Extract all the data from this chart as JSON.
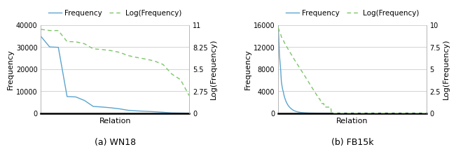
{
  "wn18": {
    "freq_values": [
      34859,
      29875,
      30058,
      7555,
      7374,
      5765,
      3068,
      2812,
      2463,
      1991,
      1323,
      1045,
      855,
      677,
      438,
      133,
      66,
      9
    ],
    "ylim_freq": [
      0,
      40000
    ],
    "yticks_freq": [
      0,
      10000,
      20000,
      30000,
      40000
    ],
    "ylim_log": [
      0,
      11
    ],
    "yticks_log": [
      0,
      2.75,
      5.5,
      8.25,
      11
    ],
    "xlabel": "Relation",
    "ylabel_left": "Frequency",
    "ylabel_right": "Log(Frequency)",
    "title": "(a) WN18"
  },
  "fb15k": {
    "freq_values": [
      15981,
      13705,
      10579,
      9185,
      7768,
      5765,
      4950,
      4330,
      3890,
      3310,
      2870,
      2540,
      2200,
      1950,
      1720,
      1510,
      1350,
      1200,
      1070,
      950,
      850,
      750,
      660,
      580,
      510,
      450,
      400,
      360,
      320,
      285,
      255,
      228,
      203,
      181,
      162,
      144,
      128,
      115,
      102,
      91,
      81,
      72,
      64,
      57,
      51,
      45,
      40,
      36,
      32,
      28,
      25,
      22,
      20,
      18,
      16,
      14,
      12,
      11,
      10,
      9,
      8,
      7,
      6,
      6,
      5,
      5,
      4,
      4,
      3,
      3,
      3,
      3,
      2,
      2,
      2,
      2,
      2,
      2,
      2,
      2,
      2,
      2,
      2,
      1,
      1,
      1,
      1,
      1,
      1,
      1,
      1,
      1,
      1,
      1,
      1,
      1,
      1,
      1,
      1,
      1,
      1,
      1,
      1,
      1,
      1,
      1,
      1,
      1,
      1,
      1,
      1,
      1,
      1,
      1,
      1,
      1,
      1,
      1,
      1,
      1,
      1,
      1,
      1,
      1,
      1,
      1,
      1,
      1,
      1,
      1,
      1,
      1,
      1,
      1,
      1,
      1,
      1,
      1,
      1,
      1,
      1,
      1,
      1,
      1,
      1,
      1,
      1,
      1,
      1,
      1,
      1,
      1,
      1,
      1,
      1,
      1,
      1,
      1,
      1,
      1,
      1,
      1,
      1,
      1,
      1,
      1,
      1,
      1,
      1,
      1,
      1,
      1,
      1,
      1,
      1,
      1,
      1,
      1,
      1,
      1,
      1,
      1,
      1,
      1,
      1,
      1,
      1,
      1,
      1,
      1,
      1,
      1,
      1,
      1,
      1,
      1,
      1,
      1,
      1,
      1,
      1,
      1,
      1,
      1,
      1,
      1,
      1,
      1,
      1,
      1,
      1,
      1,
      1,
      1,
      1,
      1,
      1,
      1,
      1,
      1,
      1,
      1,
      1,
      1,
      1,
      1,
      1,
      1,
      1,
      1,
      1,
      1
    ],
    "ylim_freq": [
      0,
      16000
    ],
    "yticks_freq": [
      0,
      4000,
      8000,
      12000,
      16000
    ],
    "ylim_log": [
      0,
      10
    ],
    "yticks_log": [
      0,
      2.5,
      5.0,
      7.5,
      10
    ],
    "xlabel": "Relation",
    "ylabel_left": "Frequency",
    "ylabel_right": "Log(Frequency)",
    "title": "(b) FB15k"
  },
  "line_color_freq": "#5BA4CF",
  "line_color_log": "#7DC46A",
  "bg_color": "#ffffff",
  "grid_color": "#cccccc",
  "label_freq": "Frequency",
  "label_log": "Log(Frequency)",
  "figsize": [
    6.4,
    2.25
  ],
  "dpi": 100
}
